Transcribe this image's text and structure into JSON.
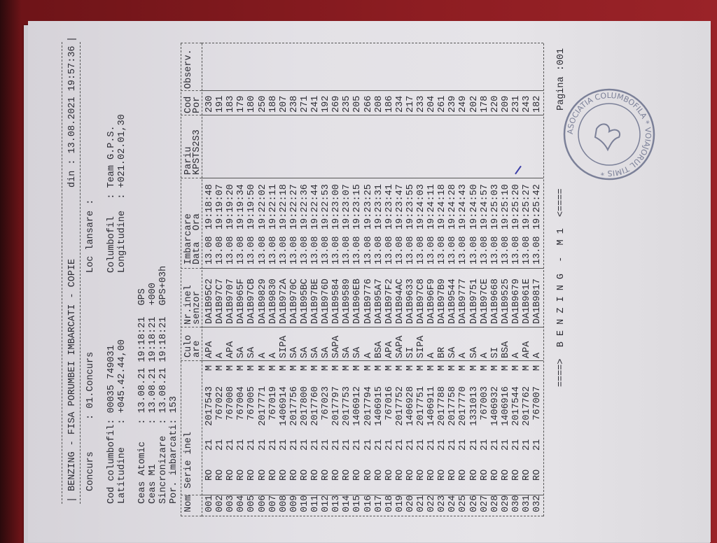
{
  "header": {
    "title": "BENZING - FISA PORUMBEI IMBARCATI - COPIE",
    "date_label": "din : 13.08.2021 19:57:36",
    "concurs_label": "Concurs",
    "concurs_value": ": 01.Concurs",
    "loc_lansare": "Loc lansare :",
    "cod_columbofil": "Cod columbofil: 00035 749031",
    "latitudine": "Latitudine    : +045.42.44,00",
    "columbofil": "Columbofil   : Team G.P.S.",
    "longitudine": "Longitudine  : +021.02.01,30",
    "ceas_atomic": "Ceas Atomic   : 13.08.21 19:18:21  GPS",
    "ceas_m1": "Ceas M1       : 13.08.21 19:18:21  +000",
    "sincronizare": "Sincronizare  : 13.08.21 19:18:21  GPS+03h",
    "por_imbarcati": "Por. imbarcati: 153"
  },
  "table": {
    "headers1": [
      "Nom",
      "Serie inel",
      "Culo",
      "Nr.inel",
      "Imbarcare",
      "Pariu",
      "Cod",
      "Observ."
    ],
    "headers2": [
      "",
      "",
      "are",
      "senzor",
      "Data  Ora",
      "KPSTS2S3",
      "Por",
      ""
    ],
    "rows": [
      [
        "001",
        "RO",
        "21",
        "2017543",
        "M",
        "APA",
        "DA1B95C2",
        "13.08",
        "19:18:48",
        "",
        "230"
      ],
      [
        "002",
        "RO",
        "21",
        "767022",
        "M",
        "A",
        "DA1B97C7",
        "13.08",
        "19:19:07",
        "",
        "191"
      ],
      [
        "003",
        "RO",
        "21",
        "767008",
        "M",
        "APA",
        "DA1B9707",
        "13.08",
        "19:19:20",
        "",
        "183"
      ],
      [
        "004",
        "RO",
        "21",
        "767004",
        "M",
        "SA",
        "DA1B965F",
        "13.08",
        "19:19:34",
        "",
        "179"
      ],
      [
        "005",
        "RO",
        "21",
        "767005",
        "M",
        "SA",
        "DA1B97CB",
        "13.08",
        "19:19:50",
        "",
        "180"
      ],
      [
        "006",
        "RO",
        "21",
        "2017771",
        "M",
        "A",
        "DA1B9829",
        "13.08",
        "19:22:02",
        "",
        "250"
      ],
      [
        "007",
        "RO",
        "21",
        "767019",
        "M",
        "A",
        "DA1B9830",
        "13.08",
        "19:22:11",
        "",
        "188"
      ],
      [
        "008",
        "RO",
        "21",
        "1406914",
        "M",
        "SIPA",
        "DA1B972A",
        "13.08",
        "19:22:18",
        "",
        "207"
      ],
      [
        "009",
        "RO",
        "21",
        "2017756",
        "M",
        "SA",
        "DA1B970C",
        "13.08",
        "19:22:27",
        "",
        "238"
      ],
      [
        "010",
        "RO",
        "21",
        "2017800",
        "M",
        "SA",
        "DA1B95BC",
        "13.08",
        "19:22:36",
        "",
        "271"
      ],
      [
        "011",
        "RO",
        "21",
        "2017760",
        "M",
        "SA",
        "DA1B97BE",
        "13.08",
        "19:22:44",
        "",
        "241"
      ],
      [
        "012",
        "RO",
        "21",
        "767023",
        "M",
        "SA",
        "DA1B976D",
        "13.08",
        "19:22:53",
        "",
        "192"
      ],
      [
        "013",
        "RO",
        "21",
        "2017797",
        "M",
        "SAPA",
        "DA1B9584",
        "13.08",
        "19:23:00",
        "",
        "269"
      ],
      [
        "014",
        "RO",
        "21",
        "2017753",
        "M",
        "SA",
        "DA1B9589",
        "13.08",
        "19:23:07",
        "",
        "235"
      ],
      [
        "015",
        "RO",
        "21",
        "1406912",
        "M",
        "SA",
        "DA1B96EB",
        "13.08",
        "19:23:15",
        "",
        "205"
      ],
      [
        "016",
        "RO",
        "21",
        "2017794",
        "M",
        "A",
        "DA1B9776",
        "13.08",
        "19:23:25",
        "",
        "266"
      ],
      [
        "017",
        "RO",
        "21",
        "1406915",
        "M",
        "BSA",
        "DA1B95A7",
        "13.08",
        "19:23:31",
        "",
        "208"
      ],
      [
        "018",
        "RO",
        "21",
        "767016",
        "M",
        "APA",
        "DA1B97F2",
        "13.08",
        "19:23:41",
        "",
        "186"
      ],
      [
        "019",
        "RO",
        "21",
        "2017752",
        "M",
        "SAPA",
        "DA1B94AC",
        "13.08",
        "19:23:47",
        "",
        "234"
      ],
      [
        "020",
        "RO",
        "21",
        "1406928",
        "M",
        "SI",
        "DA1B9633",
        "13.08",
        "19:23:55",
        "",
        "217"
      ],
      [
        "021",
        "RO",
        "21",
        "2017751",
        "M",
        "SIPA",
        "DA1B97C8",
        "13.08",
        "19:24:03",
        "",
        "233"
      ],
      [
        "022",
        "RO",
        "21",
        "1406911",
        "M",
        "A",
        "DA1B96F9",
        "13.08",
        "19:24:11",
        "",
        "204"
      ],
      [
        "023",
        "RO",
        "21",
        "2017788",
        "M",
        "BR",
        "DA1B97B9",
        "13.08",
        "19:24:18",
        "",
        "261"
      ],
      [
        "024",
        "RO",
        "21",
        "2017758",
        "M",
        "SA",
        "DA1B9544",
        "13.08",
        "19:24:28",
        "",
        "239"
      ],
      [
        "025",
        "RO",
        "21",
        "2017770",
        "M",
        "A",
        "DA1B9777",
        "13.08",
        "19:24:43",
        "",
        "249"
      ],
      [
        "026",
        "RO",
        "21",
        "1331013",
        "M",
        "SA",
        "DA1B9751",
        "13.08",
        "19:24:50",
        "",
        "202"
      ],
      [
        "027",
        "RO",
        "21",
        "767003",
        "M",
        "A",
        "DA1B97CE",
        "13.08",
        "19:24:57",
        "",
        "178"
      ],
      [
        "028",
        "RO",
        "21",
        "1406932",
        "M",
        "SI",
        "DA1B9668",
        "13.08",
        "19:25:03",
        "",
        "220"
      ],
      [
        "029",
        "RO",
        "21",
        "1406916",
        "M",
        "BSA",
        "DA1B9525",
        "13.08",
        "19:25:10",
        "",
        "209"
      ],
      [
        "030",
        "RO",
        "21",
        "2017544",
        "M",
        "A",
        "DA1B9679",
        "13.08",
        "19:25:20",
        "",
        "231"
      ],
      [
        "031",
        "RO",
        "21",
        "2017762",
        "M",
        "APA",
        "DA1B961E",
        "13.08",
        "19:25:27",
        "",
        "243"
      ],
      [
        "032",
        "RO",
        "21",
        "767007",
        "M",
        "A",
        "DA1B9817",
        "13.08",
        "19:25:42",
        "",
        "182"
      ]
    ]
  },
  "footer": {
    "banner": "====>  B E N Z I N G  -  M 1  <====",
    "page": "Pagina :001"
  },
  "stamp": {
    "text": "ASOCIATIA COLUMBOFILA * VOIAJORUL TIMIS *"
  },
  "colors": {
    "ink": "#2b2b33",
    "stamp": "#7b8098",
    "background": "#8e1d22",
    "paper": "#e3e1e6"
  }
}
